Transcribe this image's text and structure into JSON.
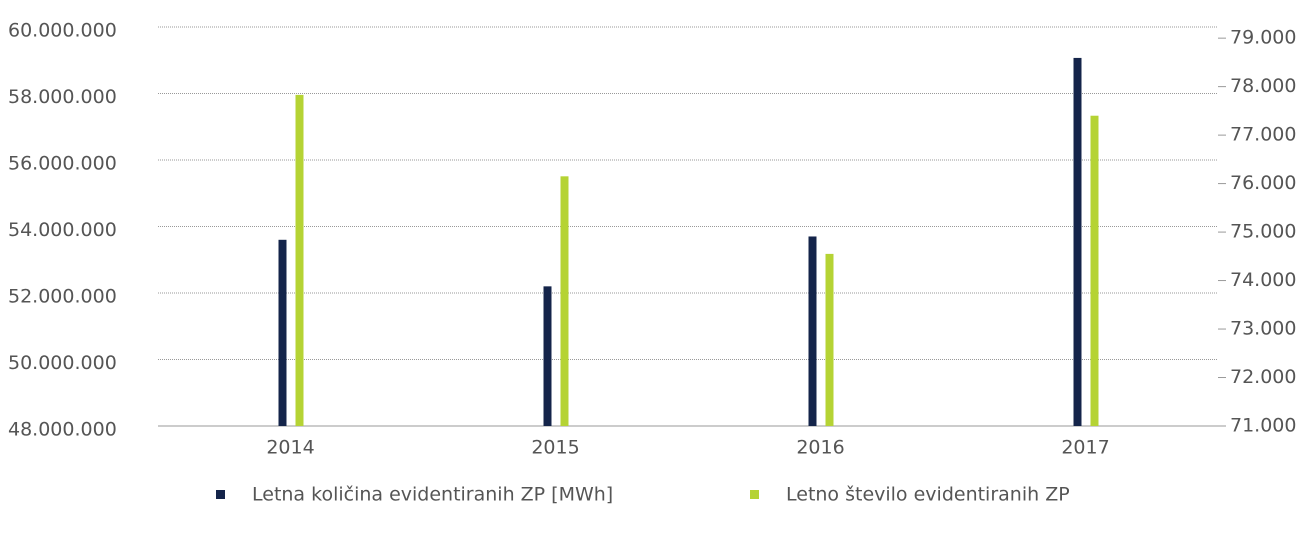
{
  "chart_data": {
    "type": "bar",
    "categories": [
      "2014",
      "2015",
      "2016",
      "2017"
    ],
    "series": [
      {
        "name": "Letna količina evidentiranih ZP [MWh]",
        "color": "#14244a",
        "values": [
          53600000,
          52200000,
          53700000,
          59070000
        ]
      },
      {
        "name": "Letno število evidentiranih ZP",
        "color": "#b5d334",
        "axis": "y2",
        "values": [
          77830,
          76150,
          74550,
          77400
        ]
      }
    ],
    "ylim": [
      48000000,
      60000000
    ],
    "yticks": [
      {
        "value": 48000000,
        "label": "48.000.000"
      },
      {
        "value": 50000000,
        "label": "50.000.000"
      },
      {
        "value": 52000000,
        "label": "52.000.000"
      },
      {
        "value": 54000000,
        "label": "54.000.000"
      },
      {
        "value": 56000000,
        "label": "56.000.000"
      },
      {
        "value": 58000000,
        "label": "58.000.000"
      },
      {
        "value": 60000000,
        "label": "60.000.000"
      }
    ],
    "y2lim": [
      71000,
      79230
    ],
    "y2ticks": [
      {
        "value": 71000,
        "label": "71.000"
      },
      {
        "value": 72000,
        "label": "72.000"
      },
      {
        "value": 73000,
        "label": "73.000"
      },
      {
        "value": 74000,
        "label": "74.000"
      },
      {
        "value": 75000,
        "label": "75.000"
      },
      {
        "value": 76000,
        "label": "76.000"
      },
      {
        "value": 77000,
        "label": "77.000"
      },
      {
        "value": 78000,
        "label": "78.000"
      },
      {
        "value": 79000,
        "label": "79.000"
      }
    ],
    "grid": true,
    "legend": "bottom"
  }
}
